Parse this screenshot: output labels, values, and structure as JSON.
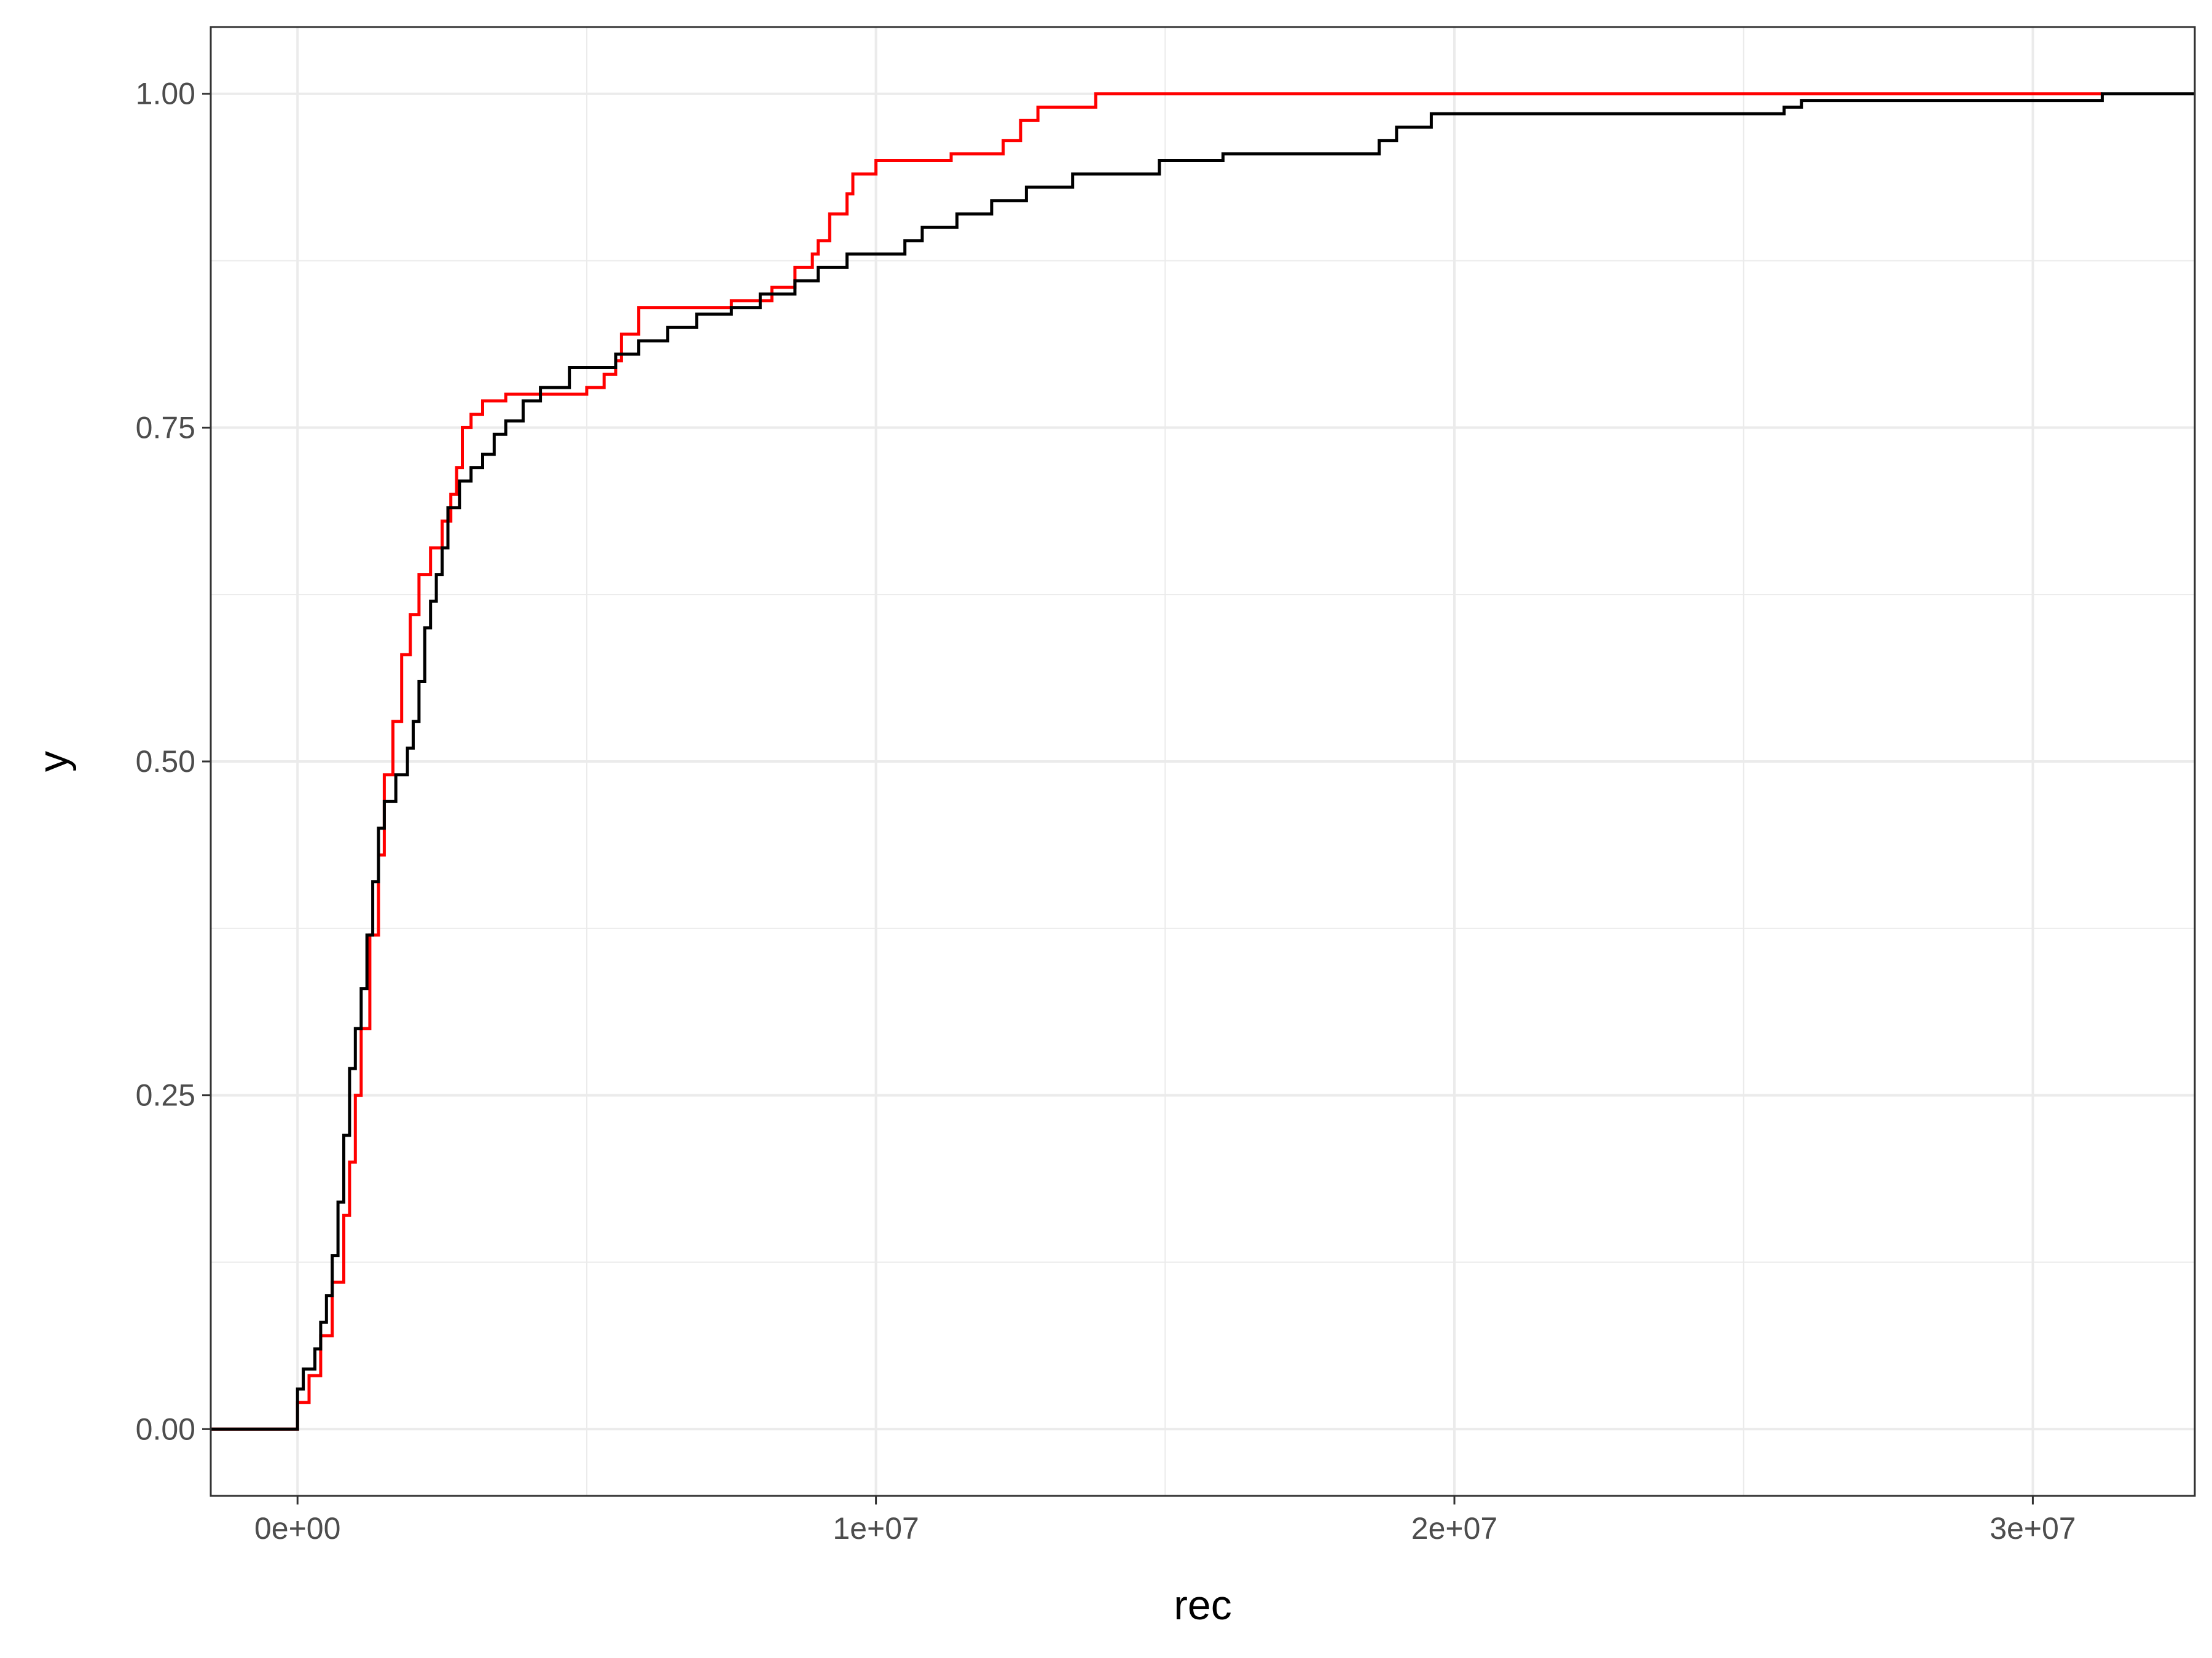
{
  "chart_data": {
    "type": "line",
    "step": true,
    "xlabel": "rec",
    "ylabel": "y",
    "xlim": [
      -1500000,
      32800000
    ],
    "ylim": [
      -0.05,
      1.05
    ],
    "x_major_ticks": [
      0,
      10000000,
      20000000,
      30000000
    ],
    "x_tick_labels": [
      "0e+00",
      "1e+07",
      "2e+07",
      "3e+07"
    ],
    "x_minor_ticks": [
      5000000,
      15000000,
      25000000
    ],
    "y_major_ticks": [
      0,
      0.25,
      0.5,
      0.75,
      1.0
    ],
    "y_tick_labels": [
      "0.00",
      "0.25",
      "0.50",
      "0.75",
      "1.00"
    ],
    "y_minor_ticks": [
      0.125,
      0.375,
      0.625,
      0.875
    ],
    "grid": true,
    "legend": "none",
    "colors": {
      "series_red": "#ff0000",
      "series_black": "#000000",
      "grid": "#ebebeb",
      "panel_border": "#333333",
      "background": "#ffffff"
    },
    "series": [
      {
        "color": "#ff0000",
        "points": [
          [
            -1500000,
            0.0
          ],
          [
            0,
            0.0
          ],
          [
            0,
            0.02
          ],
          [
            200000,
            0.04
          ],
          [
            400000,
            0.07
          ],
          [
            600000,
            0.11
          ],
          [
            800000,
            0.16
          ],
          [
            900000,
            0.2
          ],
          [
            1000000,
            0.25
          ],
          [
            1100000,
            0.3
          ],
          [
            1250000,
            0.37
          ],
          [
            1400000,
            0.43
          ],
          [
            1500000,
            0.49
          ],
          [
            1650000,
            0.53
          ],
          [
            1800000,
            0.58
          ],
          [
            1950000,
            0.61
          ],
          [
            2100000,
            0.64
          ],
          [
            2300000,
            0.66
          ],
          [
            2500000,
            0.68
          ],
          [
            2650000,
            0.7
          ],
          [
            2750000,
            0.72
          ],
          [
            2850000,
            0.75
          ],
          [
            3000000,
            0.76
          ],
          [
            3200000,
            0.77
          ],
          [
            3600000,
            0.775
          ],
          [
            5000000,
            0.78
          ],
          [
            5300000,
            0.79
          ],
          [
            5500000,
            0.8
          ],
          [
            5600000,
            0.82
          ],
          [
            5900000,
            0.84
          ],
          [
            7500000,
            0.845
          ],
          [
            8200000,
            0.855
          ],
          [
            8600000,
            0.87
          ],
          [
            8900000,
            0.88
          ],
          [
            9000000,
            0.89
          ],
          [
            9200000,
            0.91
          ],
          [
            9500000,
            0.925
          ],
          [
            9600000,
            0.94
          ],
          [
            10000000,
            0.95
          ],
          [
            11300000,
            0.955
          ],
          [
            12200000,
            0.965
          ],
          [
            12500000,
            0.98
          ],
          [
            12800000,
            0.99
          ],
          [
            13800000,
            1.0
          ],
          [
            31200000,
            1.0
          ]
        ]
      },
      {
        "color": "#000000",
        "points": [
          [
            -1500000,
            0.0
          ],
          [
            0,
            0.0
          ],
          [
            0,
            0.03
          ],
          [
            100000,
            0.045
          ],
          [
            300000,
            0.06
          ],
          [
            400000,
            0.08
          ],
          [
            500000,
            0.1
          ],
          [
            600000,
            0.13
          ],
          [
            700000,
            0.17
          ],
          [
            800000,
            0.22
          ],
          [
            900000,
            0.27
          ],
          [
            1000000,
            0.3
          ],
          [
            1100000,
            0.33
          ],
          [
            1200000,
            0.37
          ],
          [
            1300000,
            0.41
          ],
          [
            1400000,
            0.45
          ],
          [
            1500000,
            0.47
          ],
          [
            1700000,
            0.49
          ],
          [
            1900000,
            0.51
          ],
          [
            2000000,
            0.53
          ],
          [
            2100000,
            0.56
          ],
          [
            2200000,
            0.6
          ],
          [
            2300000,
            0.62
          ],
          [
            2400000,
            0.64
          ],
          [
            2500000,
            0.66
          ],
          [
            2600000,
            0.69
          ],
          [
            2800000,
            0.71
          ],
          [
            3000000,
            0.72
          ],
          [
            3200000,
            0.73
          ],
          [
            3400000,
            0.745
          ],
          [
            3600000,
            0.755
          ],
          [
            3900000,
            0.77
          ],
          [
            4200000,
            0.78
          ],
          [
            4700000,
            0.795
          ],
          [
            5500000,
            0.805
          ],
          [
            5900000,
            0.815
          ],
          [
            6400000,
            0.825
          ],
          [
            6900000,
            0.835
          ],
          [
            7500000,
            0.84
          ],
          [
            8000000,
            0.85
          ],
          [
            8600000,
            0.86
          ],
          [
            9000000,
            0.87
          ],
          [
            9500000,
            0.88
          ],
          [
            10500000,
            0.89
          ],
          [
            10800000,
            0.9
          ],
          [
            11400000,
            0.91
          ],
          [
            12000000,
            0.92
          ],
          [
            12600000,
            0.93
          ],
          [
            13400000,
            0.94
          ],
          [
            14900000,
            0.95
          ],
          [
            16000000,
            0.955
          ],
          [
            18700000,
            0.965
          ],
          [
            19000000,
            0.975
          ],
          [
            19600000,
            0.985
          ],
          [
            25700000,
            0.99
          ],
          [
            26000000,
            0.995
          ],
          [
            31200000,
            1.0
          ],
          [
            32800000,
            1.0
          ]
        ]
      }
    ]
  }
}
